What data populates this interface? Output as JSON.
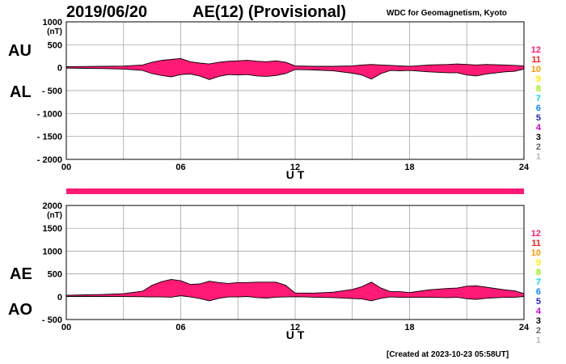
{
  "header": {
    "date": "2019/06/20",
    "title": "AE(12) (Provisional)",
    "org": "WDC for Geomagnetism, Kyoto"
  },
  "footer": {
    "created": "[Created at 2023-10-23 05:58UT]"
  },
  "side_labels": {
    "au": "AU",
    "al": "AL",
    "ae": "AE",
    "ao": "AO"
  },
  "colors": {
    "fill": "#ff1a75",
    "line": "#000000",
    "grid": "#999999"
  },
  "legend": [
    {
      "label": "12",
      "color": "#ff1a75"
    },
    {
      "label": "11",
      "color": "#ff1a1a"
    },
    {
      "label": "10",
      "color": "#ff9900"
    },
    {
      "label": "9",
      "color": "#ffee00"
    },
    {
      "label": "8",
      "color": "#99ee00"
    },
    {
      "label": "7",
      "color": "#00dddd"
    },
    {
      "label": "6",
      "color": "#0088ff"
    },
    {
      "label": "5",
      "color": "#2222cc"
    },
    {
      "label": "4",
      "color": "#cc00cc"
    },
    {
      "label": "3",
      "color": "#000000"
    },
    {
      "label": "2",
      "color": "#666666"
    },
    {
      "label": "1",
      "color": "#bbbbbb"
    }
  ],
  "chart_data": [
    {
      "type": "area",
      "name": "AU/AL",
      "unit": "(nT)",
      "xlabel": "U T",
      "xlim": [
        0,
        24
      ],
      "ylim": [
        -2000,
        1000
      ],
      "x_ticks": [
        "00",
        "06",
        "12",
        "18",
        "24"
      ],
      "y_ticks": [
        "1000",
        "500",
        "0",
        "- 500",
        "- 1000",
        "- 1500",
        "- 2000"
      ],
      "grid": true,
      "x": [
        0,
        1,
        2,
        3,
        4,
        4.5,
        5,
        5.5,
        6,
        6.5,
        7,
        7.5,
        8,
        8.5,
        9,
        9.5,
        10,
        10.5,
        11,
        11.5,
        12,
        13,
        14,
        15,
        15.5,
        16,
        16.5,
        17,
        17.5,
        18,
        19,
        20,
        20.5,
        21,
        21.5,
        22,
        23,
        23.5,
        24
      ],
      "series": [
        {
          "name": "AU",
          "values": [
            20,
            25,
            30,
            35,
            60,
            120,
            160,
            180,
            200,
            130,
            100,
            80,
            120,
            140,
            150,
            160,
            140,
            130,
            150,
            120,
            40,
            30,
            30,
            40,
            60,
            70,
            60,
            50,
            40,
            30,
            60,
            70,
            80,
            70,
            60,
            70,
            60,
            50,
            40
          ]
        },
        {
          "name": "AL",
          "values": [
            -10,
            -15,
            -20,
            -30,
            -60,
            -130,
            -170,
            -200,
            -150,
            -140,
            -180,
            -260,
            -190,
            -150,
            -160,
            -150,
            -180,
            -190,
            -170,
            -130,
            -40,
            -50,
            -70,
            -120,
            -160,
            -250,
            -130,
            -60,
            -70,
            -60,
            -90,
            -110,
            -110,
            -160,
            -180,
            -140,
            -90,
            -80,
            -30
          ]
        }
      ]
    },
    {
      "type": "area",
      "name": "AE/AO",
      "unit": "(nT)",
      "xlabel": "U T",
      "xlim": [
        0,
        24
      ],
      "ylim": [
        -500,
        2000
      ],
      "x_ticks": [
        "00",
        "06",
        "12",
        "18",
        "24"
      ],
      "y_ticks": [
        "2000",
        "1500",
        "1000",
        "500",
        "0",
        "- 500"
      ],
      "grid": true,
      "x": [
        0,
        1,
        2,
        3,
        4,
        4.5,
        5,
        5.5,
        6,
        6.5,
        7,
        7.5,
        8,
        8.5,
        9,
        9.5,
        10,
        10.5,
        11,
        11.5,
        12,
        13,
        14,
        15,
        15.5,
        16,
        16.5,
        17,
        17.5,
        18,
        19,
        20,
        20.5,
        21,
        21.5,
        22,
        23,
        23.5,
        24
      ],
      "series": [
        {
          "name": "AE",
          "values": [
            30,
            40,
            50,
            65,
            120,
            250,
            330,
            380,
            350,
            270,
            280,
            340,
            310,
            290,
            310,
            310,
            320,
            320,
            320,
            250,
            80,
            80,
            100,
            160,
            220,
            320,
            190,
            110,
            110,
            90,
            150,
            180,
            190,
            230,
            240,
            210,
            150,
            130,
            70
          ]
        },
        {
          "name": "AO",
          "values": [
            5,
            5,
            5,
            3,
            0,
            -5,
            -5,
            -10,
            25,
            -5,
            -40,
            -90,
            -35,
            -5,
            -5,
            5,
            -20,
            -30,
            -10,
            -5,
            0,
            -10,
            -20,
            -40,
            -50,
            -90,
            -35,
            -5,
            -15,
            -15,
            -15,
            -20,
            -15,
            -45,
            -60,
            -35,
            -15,
            -15,
            5
          ]
        }
      ]
    }
  ]
}
